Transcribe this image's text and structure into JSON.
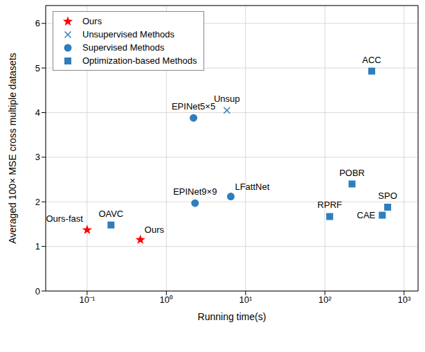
{
  "chart_data": {
    "type": "scatter",
    "x_label": "Running time(s)",
    "y_label": "Averaged 100× MSE cross multiple datasets",
    "log": "x",
    "grid": true,
    "legend": "upper left",
    "xlim": [
      0.03,
      1500
    ],
    "xticks": [
      {
        "value": 0.1,
        "label": "10⁻¹"
      },
      {
        "value": 1,
        "label": "10⁰"
      },
      {
        "value": 10,
        "label": "10¹"
      },
      {
        "value": 100,
        "label": "10²"
      },
      {
        "value": 1000,
        "label": "10³"
      }
    ],
    "ylim": [
      0,
      6.4
    ],
    "yticks": [
      0,
      1,
      2,
      3,
      4,
      5,
      6
    ],
    "series": [
      {
        "name": "Ours",
        "color": "#ff0000",
        "marker": "star",
        "x": [
          0.1,
          0.47
        ],
        "values": [
          1.37,
          1.15
        ],
        "labels": [
          "Ours-fast",
          "Ours"
        ]
      },
      {
        "name": "Unsupervised Methods",
        "color": "#2e7ebc",
        "marker": "x",
        "x": [
          5.8
        ],
        "values": [
          4.05
        ],
        "labels": [
          "Unsup"
        ]
      },
      {
        "name": "Supervised Methods",
        "color": "#2e7ebc",
        "marker": "circle",
        "x": [
          2.2,
          2.3,
          6.5
        ],
        "values": [
          3.88,
          1.97,
          2.12
        ],
        "labels": [
          "EPINet5×5",
          "EPINet9×9",
          "LFattNet"
        ]
      },
      {
        "name": "Optimization-based Methods",
        "color": "#2e7ebc",
        "marker": "square",
        "x": [
          0.2,
          115,
          220,
          530,
          620,
          390
        ],
        "values": [
          1.48,
          1.67,
          2.4,
          1.7,
          1.88,
          4.93
        ],
        "labels": [
          "OAVC",
          "RPRF",
          "POBR",
          "CAE",
          "SPO",
          "ACC"
        ]
      }
    ]
  }
}
